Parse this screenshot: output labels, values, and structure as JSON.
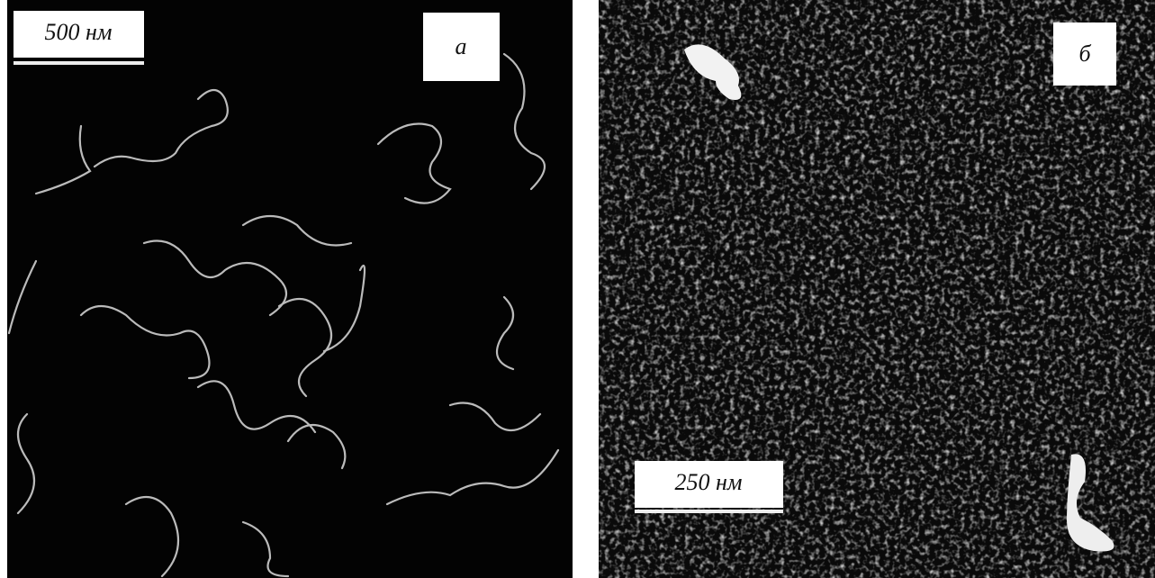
{
  "panels": [
    {
      "label": "а",
      "scale": "500 нм"
    },
    {
      "label": "б",
      "scale": "250 нм"
    }
  ]
}
